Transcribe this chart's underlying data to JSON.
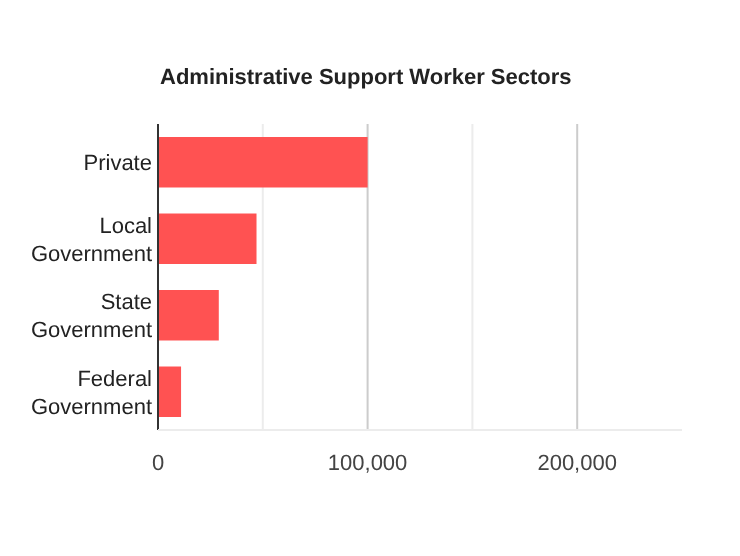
{
  "chart_data": {
    "type": "bar",
    "orientation": "horizontal",
    "title": "Administrative Support Worker Sectors",
    "categories": [
      "Private",
      "Local Government",
      "State Government",
      "Federal Government"
    ],
    "values": [
      100000,
      47000,
      29000,
      11000
    ],
    "color": "#ff5252",
    "xlim": [
      0,
      250000
    ],
    "xticks": [
      0,
      {
        "value": 50000,
        "label": null
      },
      {
        "value": 100000,
        "label": "100,000"
      },
      {
        "value": 150000,
        "label": null
      },
      {
        "value": 200000,
        "label": "200,000"
      }
    ],
    "grid": "x"
  }
}
